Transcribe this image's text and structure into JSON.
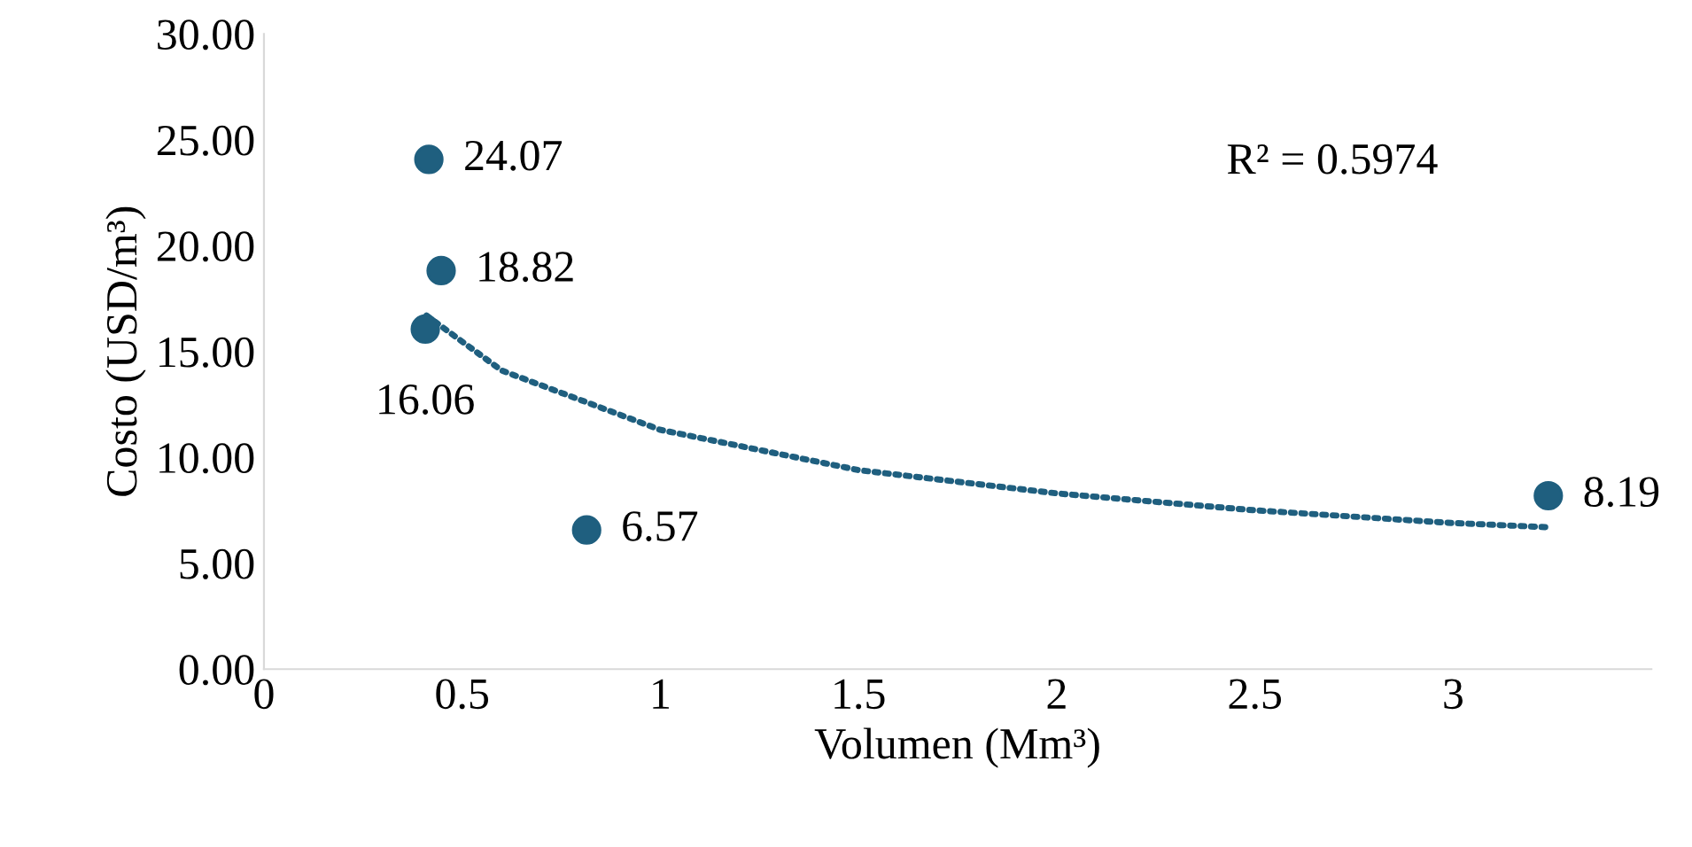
{
  "chart_data": {
    "type": "scatter",
    "xlabel": "Volumen (Mm³)",
    "ylabel": "Costo (USD/m³)",
    "series": [
      {
        "color": "#1f5f7f",
        "x": [
          0.416,
          0.447,
          0.407,
          0.814,
          3.24
        ],
        "values": [
          24.07,
          18.82,
          16.06,
          6.57,
          8.19
        ],
        "value_labels": [
          "24.07",
          "18.82",
          "16.06",
          "6.57",
          "8.19"
        ]
      },
      {
        "type": "line",
        "color": "#1f5f7f",
        "line_style": "dotted",
        "marker": "none",
        "x": [
          0.41,
          0.6,
          1.0,
          1.5,
          2.0,
          2.5,
          3.0,
          3.24
        ],
        "values": [
          16.7,
          14.1,
          11.3,
          9.4,
          8.3,
          7.5,
          6.9,
          6.7
        ]
      }
    ],
    "annotations": [
      "R² = 0.5974"
    ],
    "xlim": [
      0,
      3.5
    ],
    "xticks": [
      0,
      0.5,
      1,
      1.5,
      2,
      2.5,
      3
    ],
    "ylim": [
      0,
      30
    ],
    "yticks": [
      {
        "value": 0,
        "label": "0.00"
      },
      {
        "value": 5,
        "label": "5.00"
      },
      {
        "value": 10,
        "label": "10.00"
      },
      {
        "value": 15,
        "label": "15.00"
      },
      {
        "value": 20,
        "label": "20.00"
      },
      {
        "value": 25,
        "label": "25.00"
      },
      {
        "value": 30,
        "label": "30.00"
      }
    ],
    "grid": false,
    "legend": false
  }
}
